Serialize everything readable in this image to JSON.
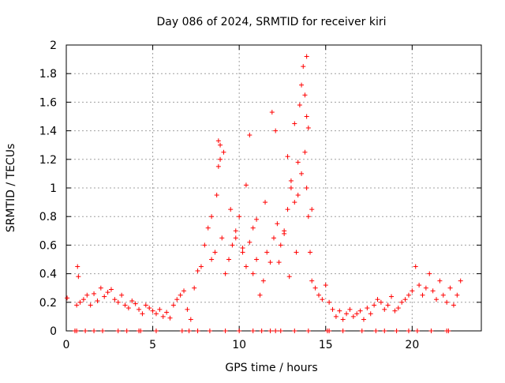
{
  "chart_data": {
    "type": "scatter",
    "title": "Day 086 of 2024, SRMTID for receiver kiri",
    "xlabel": "GPS time / hours",
    "ylabel": "SRMTID / TECUs",
    "xlim": [
      0,
      24
    ],
    "ylim": [
      0,
      2
    ],
    "xticks": [
      0,
      5,
      10,
      15,
      20
    ],
    "xtick_labels": [
      "0",
      "5",
      "10",
      "15",
      "20"
    ],
    "yticks": [
      0,
      0.2,
      0.4,
      0.6,
      0.8,
      1,
      1.2,
      1.4,
      1.6,
      1.8,
      2
    ],
    "ytick_labels": [
      "0",
      "0.2",
      "0.4",
      "0.6",
      "0.8",
      "1",
      "1.2",
      "1.4",
      "1.6",
      "1.8",
      "2"
    ],
    "grid": true,
    "marker": "plus",
    "color": "#ff0000",
    "series": [
      {
        "name": "SRMTID",
        "x": [
          0.05,
          0.6,
          0.65,
          0.7,
          0.8,
          1.0,
          1.2,
          1.4,
          1.6,
          1.8,
          2.0,
          2.2,
          2.4,
          2.6,
          2.8,
          3.0,
          3.2,
          3.4,
          3.6,
          3.8,
          4.0,
          4.2,
          4.4,
          4.6,
          4.8,
          5.0,
          5.2,
          5.4,
          5.6,
          5.8,
          6.0,
          6.2,
          6.4,
          6.6,
          6.8,
          7.0,
          7.2,
          7.4,
          7.6,
          7.8,
          8.0,
          8.2,
          8.4,
          8.6,
          8.7,
          8.8,
          8.9,
          9.0,
          9.2,
          9.4,
          9.6,
          9.8,
          10.0,
          10.2,
          10.4,
          10.6,
          10.8,
          11.0,
          11.2,
          11.4,
          11.6,
          11.8,
          12.0,
          12.2,
          12.4,
          12.6,
          12.8,
          13.0,
          13.2,
          13.4,
          13.6,
          13.8,
          13.9,
          14.0,
          14.1,
          14.2,
          14.4,
          14.6,
          14.8,
          15.0,
          15.2,
          15.4,
          15.6,
          15.8,
          16.0,
          16.2,
          16.4,
          16.6,
          16.8,
          17.0,
          17.2,
          17.4,
          17.6,
          17.8,
          18.0,
          18.2,
          18.4,
          18.6,
          18.8,
          19.0,
          19.2,
          19.4,
          19.6,
          19.8,
          20.0,
          20.2,
          20.4,
          20.6,
          20.8,
          21.0,
          21.2,
          21.4,
          21.6,
          21.8,
          22.0,
          22.2,
          22.4,
          22.6,
          22.8,
          8.9,
          9.1,
          8.8,
          10.6,
          10.4,
          11.9,
          12.1,
          13.5,
          13.7,
          13.9,
          13.6,
          13.2,
          12.8,
          13.8,
          14.0,
          9.5,
          10.8,
          11.5,
          12.6,
          13.0,
          13.4,
          13.9,
          14.2,
          8.4,
          9.8,
          10.2,
          11.0,
          12.3,
          12.9,
          13.3
        ],
        "y": [
          0.23,
          0.18,
          0.45,
          0.38,
          0.2,
          0.22,
          0.25,
          0.18,
          0.26,
          0.21,
          0.3,
          0.24,
          0.27,
          0.29,
          0.22,
          0.2,
          0.25,
          0.18,
          0.16,
          0.21,
          0.19,
          0.15,
          0.12,
          0.18,
          0.16,
          0.14,
          0.12,
          0.15,
          0.1,
          0.13,
          0.09,
          0.18,
          0.22,
          0.25,
          0.28,
          0.15,
          0.08,
          0.3,
          0.42,
          0.45,
          0.6,
          0.72,
          0.5,
          0.55,
          0.95,
          1.33,
          1.2,
          0.65,
          0.4,
          0.5,
          0.6,
          0.7,
          0.8,
          0.55,
          0.45,
          0.62,
          0.4,
          0.5,
          0.25,
          0.35,
          0.55,
          0.48,
          0.65,
          0.75,
          0.6,
          0.7,
          0.85,
          1.0,
          0.9,
          0.95,
          1.1,
          1.25,
          1.5,
          0.8,
          0.55,
          0.35,
          0.3,
          0.25,
          0.22,
          0.32,
          0.2,
          0.15,
          0.1,
          0.14,
          0.08,
          0.12,
          0.15,
          0.1,
          0.12,
          0.14,
          0.08,
          0.16,
          0.12,
          0.18,
          0.22,
          0.2,
          0.15,
          0.18,
          0.24,
          0.14,
          0.16,
          0.2,
          0.22,
          0.25,
          0.28,
          0.45,
          0.32,
          0.25,
          0.3,
          0.4,
          0.28,
          0.22,
          0.35,
          0.25,
          0.2,
          0.3,
          0.18,
          0.25,
          0.35,
          1.3,
          1.25,
          1.15,
          1.37,
          1.02,
          1.53,
          1.4,
          1.58,
          1.85,
          1.92,
          1.72,
          1.45,
          1.22,
          1.65,
          1.42,
          0.85,
          0.72,
          0.9,
          0.68,
          1.05,
          1.18,
          1.0,
          0.85,
          0.8,
          0.65,
          0.58,
          0.78,
          0.48,
          0.38,
          0.55
        ]
      }
    ],
    "baseline_markers_x": [
      0.5,
      0.6,
      1.1,
      1.6,
      2.1,
      3.0,
      3.5,
      4.2,
      4.3,
      5.2,
      6.7,
      7.1,
      7.6,
      8.3,
      9.2,
      10.0,
      10.8,
      11.3,
      11.8,
      12.1,
      12.4,
      13.2,
      14.0,
      15.1,
      15.2,
      16.0,
      17.1,
      17.9,
      18.4,
      19.1,
      19.8,
      20.3,
      21.1,
      22.0,
      22.1
    ]
  }
}
